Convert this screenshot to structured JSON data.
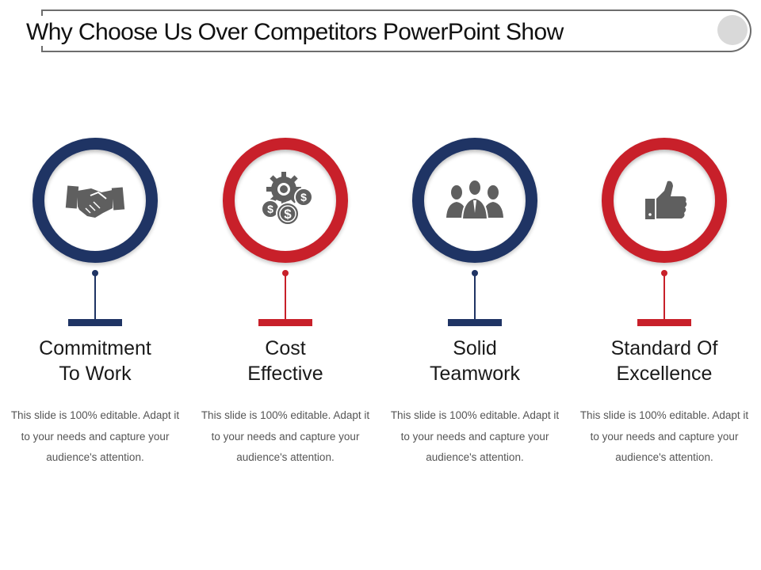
{
  "title": "Why Choose Us Over Competitors PowerPoint Show",
  "colors": {
    "navy": "#1f3464",
    "red": "#c8202a",
    "icon": "#5f5f5f"
  },
  "items": [
    {
      "heading": [
        "Commitment",
        "To Work"
      ],
      "icon": "handshake-icon",
      "color": "navy",
      "body": "This slide is 100% editable. Adapt it to your needs and capture your audience's attention."
    },
    {
      "heading": [
        "Cost",
        "Effective"
      ],
      "icon": "gear-dollar-icon",
      "color": "red",
      "body": "This slide is 100% editable. Adapt it to your needs and capture your audience's attention."
    },
    {
      "heading": [
        "Solid",
        "Teamwork"
      ],
      "icon": "team-icon",
      "color": "navy",
      "body": "This slide is 100% editable. Adapt it to your needs and capture your audience's attention."
    },
    {
      "heading": [
        "Standard Of",
        "Excellence"
      ],
      "icon": "thumbs-up-icon",
      "color": "red",
      "body": "This slide is 100% editable. Adapt it to your needs and capture your audience's attention."
    }
  ]
}
